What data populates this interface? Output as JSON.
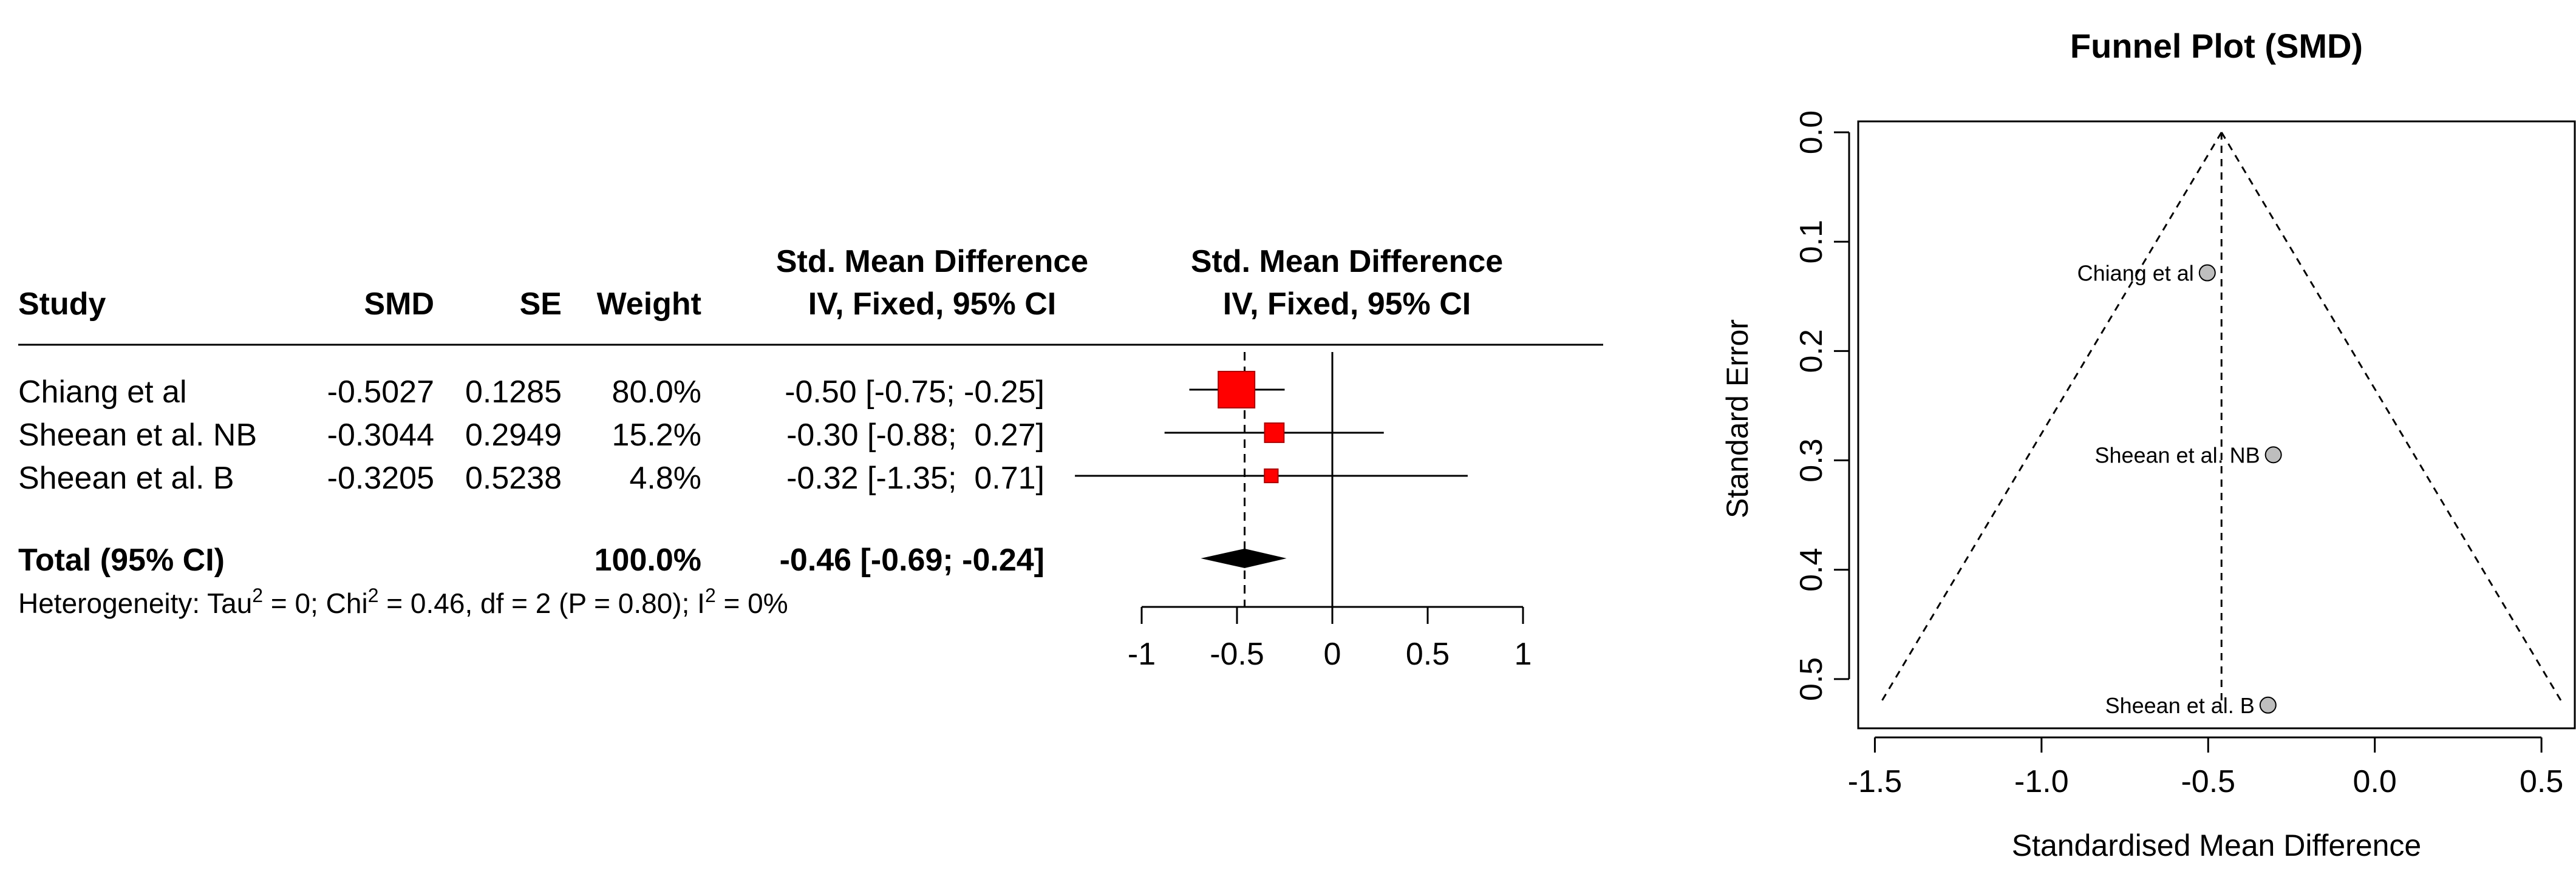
{
  "chart_data": [
    {
      "type": "forest",
      "columns": {
        "study": "Study",
        "smd": "SMD",
        "se": "SE",
        "weight": "Weight",
        "ci_head_1": "Std. Mean Difference",
        "ci_head_2": "IV, Fixed, 95% CI",
        "plot_head_1": "Std. Mean Difference",
        "plot_head_2": "IV, Fixed, 95% CI"
      },
      "studies": [
        {
          "name": "Chiang et al",
          "smd": "-0.5027",
          "se": "0.1285",
          "weight": "80.0%",
          "ci_text": "-0.50 [-0.75; -0.25]",
          "est": -0.5027,
          "lo": -0.75,
          "hi": -0.25,
          "w": 80.0
        },
        {
          "name": "Sheean et al. NB",
          "smd": "-0.3044",
          "se": "0.2949",
          "weight": "15.2%",
          "ci_text": "-0.30 [-0.88;  0.27]",
          "est": -0.3044,
          "lo": -0.88,
          "hi": 0.27,
          "w": 15.2
        },
        {
          "name": "Sheean et al. B",
          "smd": "-0.3205",
          "se": "0.5238",
          "weight": "4.8%",
          "ci_text": "-0.32 [-1.35;  0.71]",
          "est": -0.3205,
          "lo": -1.35,
          "hi": 0.71,
          "w": 4.8
        }
      ],
      "total": {
        "label": "Total (95% CI)",
        "weight": "100.0%",
        "ci_text": "-0.46 [-0.69; -0.24]",
        "est": -0.46,
        "lo": -0.69,
        "hi": -0.24
      },
      "heterogeneity": {
        "p1": "Heterogeneity: Tau",
        "sup1": "2",
        "p2": " = 0; Chi",
        "sup2": "2",
        "p3": " = 0.46, df = 2 (P = 0.80); I",
        "sup3": "2",
        "p4": " = 0%"
      },
      "xlim": [
        -1,
        1
      ],
      "ticks": [
        -1,
        -0.5,
        0,
        0.5,
        1
      ],
      "tick_labels": [
        "-1",
        "-0.5",
        "0",
        "0.5",
        "1"
      ],
      "null_line": 0,
      "colors": {
        "box": "#ff0000",
        "box_edge": "#aa0000",
        "diamond": "#000000"
      }
    },
    {
      "type": "scatter",
      "title": "Funnel Plot (SMD)",
      "xlabel": "Standardised Mean Difference",
      "ylabel": "Standard Error",
      "xlim": [
        -1.55,
        0.6
      ],
      "ylim": [
        0.545,
        -0.01
      ],
      "x_ticks": [
        -1.5,
        -1.0,
        -0.5,
        0.0,
        0.5
      ],
      "x_tick_labels": [
        "-1.5",
        "-1.0",
        "-0.5",
        "0.0",
        "0.5"
      ],
      "y_ticks": [
        0.0,
        0.1,
        0.2,
        0.3,
        0.4,
        0.5
      ],
      "y_tick_labels": [
        "0.0",
        "0.1",
        "0.2",
        "0.3",
        "0.4",
        "0.5"
      ],
      "center": -0.46,
      "funnel_max_se": 0.5238,
      "points": [
        {
          "label": "Chiang et al",
          "x": -0.5027,
          "y": 0.1285
        },
        {
          "label": "Sheean et al. NB",
          "x": -0.3044,
          "y": 0.2949
        },
        {
          "label": "Sheean et al. B",
          "x": -0.3205,
          "y": 0.5238
        }
      ],
      "colors": {
        "point": "#bebebe"
      }
    }
  ]
}
